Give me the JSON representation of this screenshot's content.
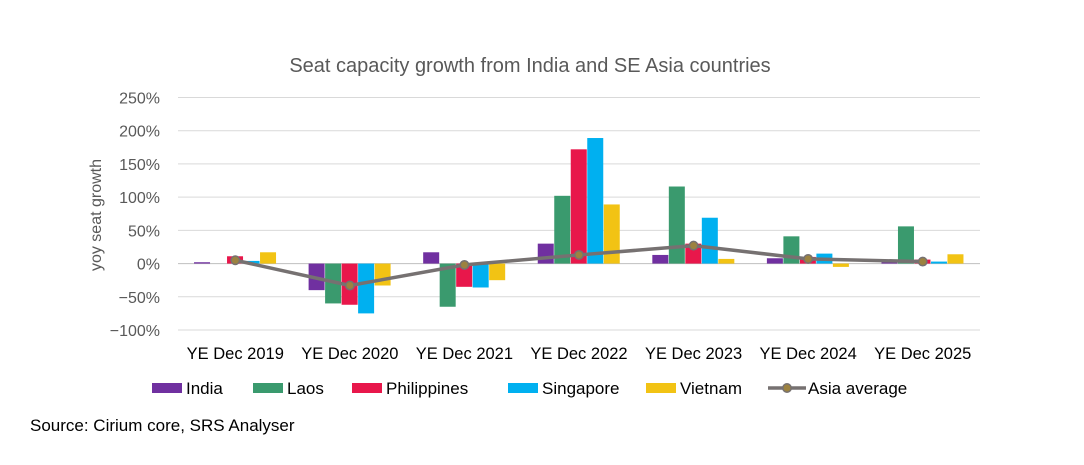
{
  "chart_data": {
    "type": "bar",
    "title": "Seat capacity growth from India and SE Asia countries",
    "ylabel": "yoy seat growth",
    "xlabel": "",
    "ylim": [
      -100,
      250
    ],
    "yticks": [
      250,
      200,
      150,
      100,
      50,
      0,
      -50,
      -100
    ],
    "ytick_labels": [
      "250%",
      "200%",
      "150%",
      "100%",
      "50%",
      "0%",
      "−50%",
      "−100%"
    ],
    "grid": true,
    "legend_position": "bottom",
    "categories": [
      "YE Dec 2019",
      "YE Dec 2020",
      "YE Dec 2021",
      "YE Dec 2022",
      "YE Dec 2023",
      "YE Dec 2024",
      "YE Dec 2025"
    ],
    "series": [
      {
        "name": "India",
        "type": "bar",
        "color": "#7030A0",
        "values": [
          2,
          -40,
          17,
          30,
          13,
          8,
          5
        ]
      },
      {
        "name": "Laos",
        "type": "bar",
        "color": "#3A9A6E",
        "values": [
          0,
          -60,
          -65,
          102,
          116,
          41,
          56
        ]
      },
      {
        "name": "Philippines",
        "type": "bar",
        "color": "#E8174B",
        "values": [
          11,
          -62,
          -35,
          172,
          30,
          10,
          6
        ]
      },
      {
        "name": "Singapore",
        "type": "bar",
        "color": "#00B0F0",
        "values": [
          4,
          -75,
          -36,
          189,
          69,
          15,
          3
        ]
      },
      {
        "name": "Vietnam",
        "type": "bar",
        "color": "#F2C314",
        "values": [
          17,
          -33,
          -25,
          89,
          7,
          -5,
          14
        ]
      },
      {
        "name": "Asia average",
        "type": "line",
        "color": "#767171",
        "marker_color": "#9C8240",
        "values": [
          5,
          -33,
          -2,
          13,
          27,
          7,
          3
        ]
      }
    ]
  },
  "source": "Source: Cirium core, SRS Analyser"
}
